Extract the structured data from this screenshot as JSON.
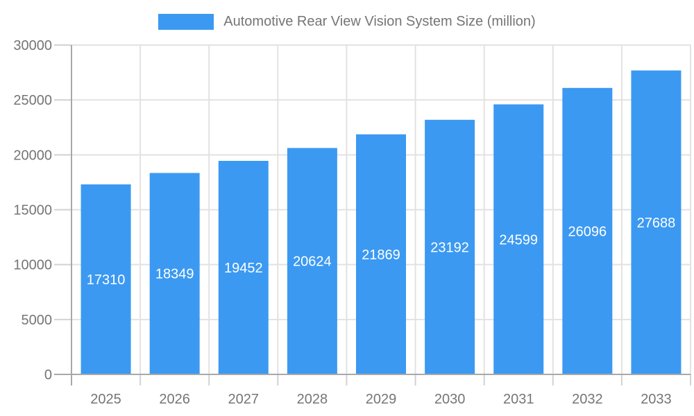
{
  "chart_data": {
    "type": "bar",
    "title": "Automotive Rear View Vision System Size (million)",
    "categories": [
      "2025",
      "2026",
      "2027",
      "2028",
      "2029",
      "2030",
      "2031",
      "2032",
      "2033"
    ],
    "series": [
      {
        "name": "Automotive Rear View Vision System Size (million)",
        "values": [
          17310,
          18349,
          19452,
          20624,
          21869,
          23192,
          24599,
          26096,
          27688
        ]
      }
    ],
    "xlabel": "",
    "ylabel": "",
    "ylim": [
      0,
      30000
    ],
    "ytick_step": 5000,
    "yticks": [
      0,
      5000,
      10000,
      15000,
      20000,
      25000,
      30000
    ],
    "grid": "both",
    "legend_position": "top-center",
    "value_label_position": "inside-center"
  },
  "colors": {
    "bar": "#3B99F2",
    "grid": "#E2E2E2",
    "tick": "#D2D2D2",
    "axis": "#A8A8A8",
    "text": "#757575",
    "value_label": "#FFFFFF",
    "background": "#FFFFFF"
  }
}
